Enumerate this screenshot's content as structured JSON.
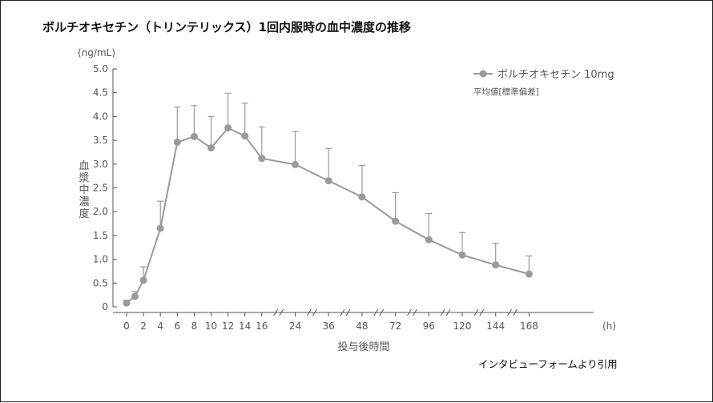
{
  "title": "ボルチオキセチン（トリンテリックス）1回内服時の血中濃度の推移",
  "source": "インタビューフォームより引用",
  "colors": {
    "series": "#9a9a9a",
    "axis": "#555555",
    "text": "#555555"
  },
  "chart_data": {
    "type": "line",
    "title": "ボルチオキセチン（トリンテリックス）1回内服時の血中濃度の推移",
    "ylabel": "血漿中濃度",
    "yunit": "(ng/mL)",
    "xlabel": "投与後時間",
    "xunit": "(h)",
    "ylim": [
      0,
      5
    ],
    "yticks": [
      "0",
      "0.5",
      "1.0",
      "1.5",
      "2.0",
      "2.5",
      "3.0",
      "3.5",
      "4.0",
      "4.5",
      "5.0"
    ],
    "xticks": [
      "0",
      "2",
      "4",
      "6",
      "8",
      "10",
      "12",
      "14",
      "16",
      "24",
      "36",
      "48",
      "72",
      "96",
      "120",
      "144",
      "168"
    ],
    "grid": false,
    "legend_position": "top-right",
    "legend_note": "平均値[標準偏差]",
    "series": [
      {
        "name": "ボルチオキセチン 10mg",
        "x": [
          0,
          1,
          2,
          4,
          6,
          8,
          10,
          12,
          14,
          16,
          24,
          36,
          48,
          72,
          96,
          120,
          144,
          168
        ],
        "values": [
          0.08,
          0.22,
          0.56,
          1.65,
          3.46,
          3.58,
          3.34,
          3.76,
          3.59,
          3.12,
          2.99,
          2.65,
          2.31,
          1.8,
          1.41,
          1.09,
          0.88,
          0.69
        ],
        "sd": [
          0.06,
          0.1,
          0.28,
          0.57,
          0.74,
          0.65,
          0.66,
          0.73,
          0.69,
          0.66,
          0.69,
          0.68,
          0.66,
          0.6,
          0.55,
          0.47,
          0.45,
          0.38
        ]
      }
    ]
  }
}
